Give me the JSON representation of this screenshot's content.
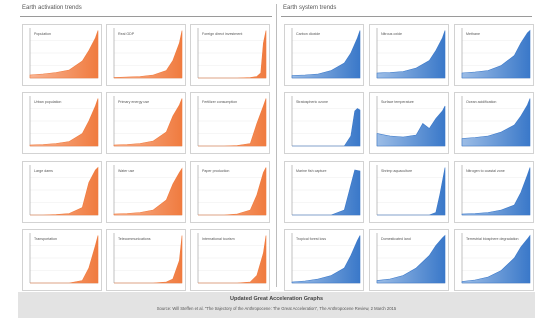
{
  "colors": {
    "left_fill": "#f07b3f",
    "left_fill_light": "#f8b493",
    "right_fill": "#3a78c9",
    "right_fill_light": "#9cbde6",
    "frame": "#c8c8c8"
  },
  "panels": {
    "left": {
      "title": "Earth activation trends"
    },
    "right": {
      "title": "Earth system trends"
    }
  },
  "footer": {
    "title": "Updated Great Acceleration Graphs",
    "source": "Source: Will Steffen et al. \"The trajectory of the Anthropocene: The Great Acceleration\", The Anthropocene Review, 2 March 2015"
  },
  "chart_data": [
    {
      "type": "area",
      "group": "left",
      "label": "Population",
      "x": [
        1750,
        1800,
        1850,
        1900,
        1950,
        1975,
        2000,
        2010
      ],
      "values": [
        0.06,
        0.08,
        0.11,
        0.16,
        0.34,
        0.55,
        0.8,
        0.95
      ],
      "ylim": [
        0,
        1
      ]
    },
    {
      "type": "area",
      "group": "left",
      "label": "Real GDP",
      "x": [
        1750,
        1800,
        1850,
        1900,
        1950,
        1975,
        2000,
        2010
      ],
      "values": [
        0.01,
        0.02,
        0.03,
        0.06,
        0.15,
        0.35,
        0.7,
        0.95
      ],
      "ylim": [
        0,
        1
      ]
    },
    {
      "type": "area",
      "group": "left",
      "label": "Foreign direct investment",
      "x": [
        1750,
        1800,
        1850,
        1900,
        1950,
        1975,
        1990,
        2000,
        2010
      ],
      "values": [
        0,
        0,
        0,
        0,
        0.01,
        0.03,
        0.1,
        0.7,
        0.95
      ],
      "ylim": [
        0,
        1
      ]
    },
    {
      "type": "area",
      "group": "left",
      "label": "Urban population",
      "x": [
        1750,
        1800,
        1850,
        1900,
        1950,
        1975,
        2000,
        2010
      ],
      "values": [
        0.02,
        0.03,
        0.05,
        0.09,
        0.25,
        0.5,
        0.8,
        0.95
      ],
      "ylim": [
        0,
        1
      ]
    },
    {
      "type": "area",
      "group": "left",
      "label": "Primary energy use",
      "x": [
        1750,
        1800,
        1850,
        1900,
        1950,
        1975,
        2000,
        2010
      ],
      "values": [
        0.02,
        0.03,
        0.05,
        0.1,
        0.28,
        0.6,
        0.82,
        0.95
      ],
      "ylim": [
        0,
        1
      ]
    },
    {
      "type": "area",
      "group": "left",
      "label": "Fertilizer consumption",
      "x": [
        1750,
        1800,
        1850,
        1900,
        1950,
        1975,
        2000,
        2010
      ],
      "values": [
        0,
        0,
        0,
        0.01,
        0.05,
        0.45,
        0.8,
        0.95
      ],
      "ylim": [
        0,
        1
      ]
    },
    {
      "type": "area",
      "group": "left",
      "label": "Large dams",
      "x": [
        1750,
        1800,
        1850,
        1900,
        1950,
        1975,
        2000,
        2010
      ],
      "values": [
        0,
        0,
        0.01,
        0.03,
        0.15,
        0.65,
        0.9,
        0.95
      ],
      "ylim": [
        0,
        1
      ]
    },
    {
      "type": "area",
      "group": "left",
      "label": "Water use",
      "x": [
        1750,
        1800,
        1850,
        1900,
        1950,
        1975,
        2000,
        2010
      ],
      "values": [
        0.02,
        0.03,
        0.05,
        0.1,
        0.3,
        0.62,
        0.85,
        0.93
      ],
      "ylim": [
        0,
        1
      ]
    },
    {
      "type": "area",
      "group": "left",
      "label": "Paper production",
      "x": [
        1750,
        1800,
        1850,
        1900,
        1950,
        1975,
        2000,
        2010
      ],
      "values": [
        0,
        0,
        0,
        0.02,
        0.1,
        0.4,
        0.85,
        0.95
      ],
      "ylim": [
        0,
        1
      ]
    },
    {
      "type": "area",
      "group": "left",
      "label": "Transportation",
      "x": [
        1750,
        1800,
        1850,
        1900,
        1950,
        1975,
        2000,
        2010
      ],
      "values": [
        0,
        0,
        0,
        0,
        0.05,
        0.3,
        0.75,
        0.95
      ],
      "ylim": [
        0,
        1
      ]
    },
    {
      "type": "area",
      "group": "left",
      "label": "Telecommunications",
      "x": [
        1750,
        1800,
        1850,
        1900,
        1950,
        1975,
        2000,
        2010
      ],
      "values": [
        0,
        0,
        0,
        0,
        0.02,
        0.08,
        0.45,
        0.95
      ],
      "ylim": [
        0,
        1
      ]
    },
    {
      "type": "area",
      "group": "left",
      "label": "International tourism",
      "x": [
        1750,
        1800,
        1850,
        1900,
        1950,
        1975,
        2000,
        2010
      ],
      "values": [
        0,
        0,
        0,
        0,
        0.02,
        0.15,
        0.6,
        0.95
      ],
      "ylim": [
        0,
        1
      ]
    },
    {
      "type": "area",
      "group": "right",
      "label": "Carbon dioxide",
      "x": [
        1750,
        1800,
        1850,
        1900,
        1950,
        1975,
        2000,
        2010
      ],
      "values": [
        0.05,
        0.06,
        0.08,
        0.15,
        0.3,
        0.5,
        0.8,
        0.95
      ],
      "ylim": [
        0,
        1
      ]
    },
    {
      "type": "area",
      "group": "right",
      "label": "Nitrous oxide",
      "x": [
        1750,
        1800,
        1850,
        1900,
        1950,
        1975,
        2000,
        2010
      ],
      "values": [
        0.1,
        0.11,
        0.13,
        0.2,
        0.35,
        0.55,
        0.8,
        0.95
      ],
      "ylim": [
        0,
        1
      ]
    },
    {
      "type": "area",
      "group": "right",
      "label": "Methane",
      "x": [
        1750,
        1800,
        1850,
        1900,
        1950,
        1975,
        2000,
        2010
      ],
      "values": [
        0.1,
        0.12,
        0.15,
        0.25,
        0.45,
        0.7,
        0.9,
        0.95
      ],
      "ylim": [
        0,
        1
      ]
    },
    {
      "type": "area",
      "group": "right",
      "label": "Stratospheric ozone",
      "x": [
        1750,
        1800,
        1850,
        1900,
        1950,
        1975,
        1990,
        2000,
        2010
      ],
      "values": [
        0,
        0,
        0,
        0,
        0,
        0.2,
        0.7,
        0.75,
        0.72
      ],
      "ylim": [
        0,
        1
      ]
    },
    {
      "type": "area",
      "group": "right",
      "label": "Surface temperature",
      "x": [
        1750,
        1800,
        1850,
        1900,
        1925,
        1950,
        1975,
        2000,
        2010
      ],
      "values": [
        0.25,
        0.2,
        0.18,
        0.22,
        0.45,
        0.35,
        0.55,
        0.7,
        0.8
      ],
      "ylim": [
        0,
        1
      ]
    },
    {
      "type": "area",
      "group": "right",
      "label": "Ocean acidification",
      "x": [
        1750,
        1800,
        1850,
        1900,
        1950,
        1975,
        2000,
        2010
      ],
      "values": [
        0.15,
        0.17,
        0.2,
        0.28,
        0.42,
        0.6,
        0.82,
        0.95
      ],
      "ylim": [
        0,
        1
      ]
    },
    {
      "type": "area",
      "group": "right",
      "label": "Marine fish capture",
      "x": [
        1750,
        1800,
        1850,
        1900,
        1950,
        1975,
        1990,
        2010
      ],
      "values": [
        0,
        0,
        0,
        0,
        0.1,
        0.6,
        0.9,
        0.88
      ],
      "ylim": [
        0,
        1
      ]
    },
    {
      "type": "area",
      "group": "right",
      "label": "Shrimp aquaculture",
      "x": [
        1750,
        1800,
        1850,
        1900,
        1950,
        1975,
        1990,
        2010
      ],
      "values": [
        0,
        0,
        0,
        0,
        0,
        0.05,
        0.4,
        0.95
      ],
      "ylim": [
        0,
        1
      ]
    },
    {
      "type": "area",
      "group": "right",
      "label": "Nitrogen to coastal zone",
      "x": [
        1750,
        1800,
        1850,
        1900,
        1950,
        1975,
        2000,
        2010
      ],
      "values": [
        0.02,
        0.03,
        0.05,
        0.1,
        0.2,
        0.45,
        0.8,
        0.95
      ],
      "ylim": [
        0,
        1
      ]
    },
    {
      "type": "area",
      "group": "right",
      "label": "Tropical forest loss",
      "x": [
        1750,
        1800,
        1850,
        1900,
        1950,
        1975,
        2000,
        2010
      ],
      "values": [
        0.02,
        0.04,
        0.08,
        0.15,
        0.3,
        0.55,
        0.85,
        0.95
      ],
      "ylim": [
        0,
        1
      ]
    },
    {
      "type": "area",
      "group": "right",
      "label": "Domesticated land",
      "x": [
        1750,
        1800,
        1850,
        1900,
        1950,
        1975,
        2000,
        2010
      ],
      "values": [
        0.05,
        0.08,
        0.15,
        0.3,
        0.55,
        0.75,
        0.9,
        0.95
      ],
      "ylim": [
        0,
        1
      ]
    },
    {
      "type": "area",
      "group": "right",
      "label": "Terrestrial biosphere degradation",
      "x": [
        1750,
        1800,
        1850,
        1900,
        1950,
        1975,
        2000,
        2010
      ],
      "values": [
        0.03,
        0.06,
        0.12,
        0.25,
        0.5,
        0.72,
        0.88,
        0.95
      ],
      "ylim": [
        0,
        1
      ]
    }
  ]
}
